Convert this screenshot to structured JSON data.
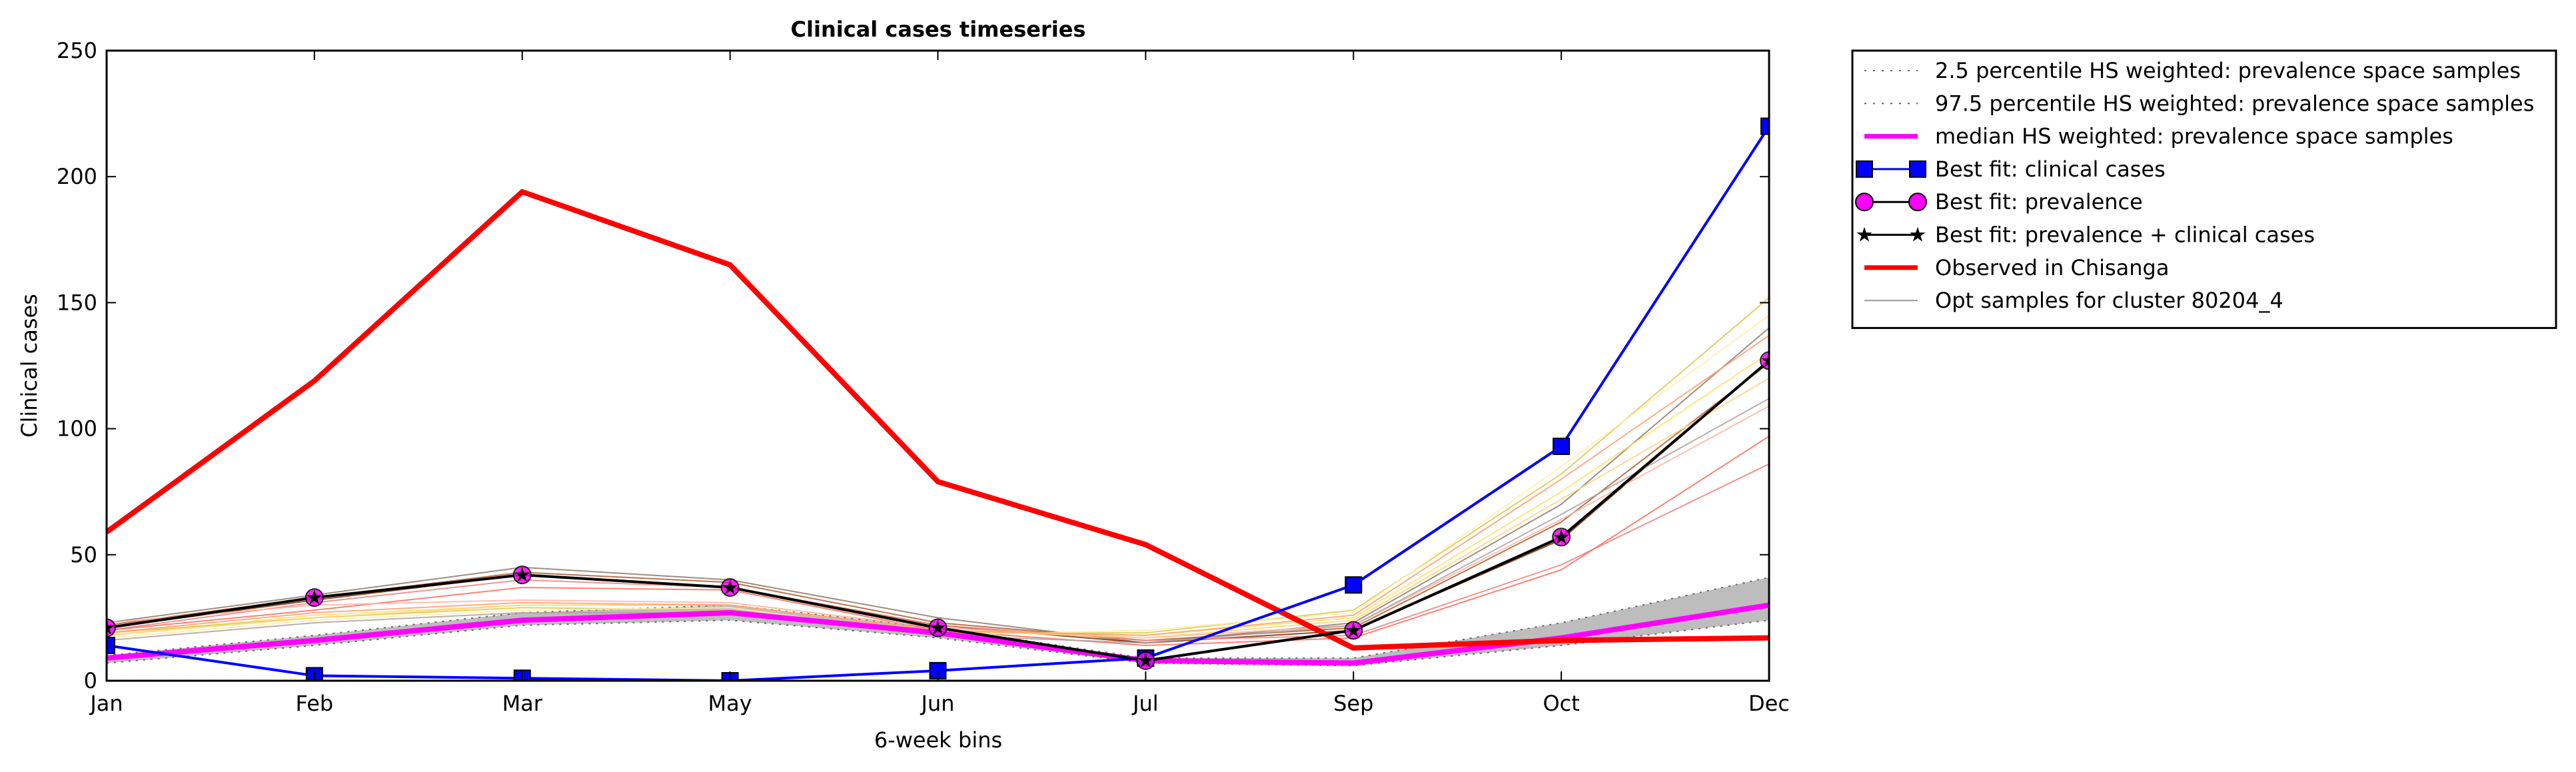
{
  "chart_data": {
    "type": "line",
    "title": "Clinical cases timeseries",
    "xlabel": "6-week bins",
    "ylabel": "Clinical cases",
    "categories": [
      "Jan",
      "Feb",
      "Mar",
      "May",
      "Jun",
      "Jul",
      "Sep",
      "Oct",
      "Dec"
    ],
    "ylim": [
      0,
      250
    ],
    "yticks": [
      0,
      50,
      100,
      150,
      200,
      250
    ],
    "grid": false,
    "legend_position": "outside right, top",
    "band": {
      "lower_name": "2.5 percentile HS weighted: prevalence space samples",
      "upper_name": "97.5 percentile HS weighted: prevalence space samples",
      "lower": [
        7,
        14,
        22,
        24,
        17,
        7,
        6,
        14,
        24
      ],
      "upper": [
        10,
        18,
        27,
        30,
        21,
        9,
        9,
        23,
        41
      ],
      "fill_color": "#bdbdbd",
      "line_color": "#666666"
    },
    "series": [
      {
        "name": "median HS weighted: prevalence space samples",
        "values": [
          9,
          16,
          24,
          27,
          19,
          8,
          7,
          17,
          30
        ],
        "color": "#ff00ff",
        "marker": "none"
      },
      {
        "name": "Best fit: clinical cases",
        "values": [
          14,
          2,
          1,
          0,
          4,
          9,
          38,
          93,
          220
        ],
        "color": "#0000ff",
        "marker": "square"
      },
      {
        "name": "Best fit: prevalence",
        "values": [
          21,
          33,
          42,
          37,
          21,
          8,
          20,
          57,
          127
        ],
        "color": "#ff00ff",
        "marker": "circle"
      },
      {
        "name": "Best fit: prevalence + clinical cases",
        "values": [
          21,
          33,
          42,
          37,
          21,
          8,
          20,
          57,
          127
        ],
        "color": "#000000",
        "marker": "star"
      },
      {
        "name": "Observed in Chisanga",
        "values": [
          59,
          119,
          194,
          165,
          79,
          54,
          13,
          16,
          17
        ],
        "color": "#ff0000",
        "marker": "none"
      },
      {
        "name": "Opt samples for cluster 80204_4",
        "values": [
          null,
          null,
          null,
          null,
          null,
          null,
          null,
          null,
          null
        ],
        "color": "#999999",
        "marker": "none"
      }
    ],
    "samples": [
      {
        "values": [
          23,
          34,
          45,
          40,
          25,
          15,
          23,
          70,
          140
        ],
        "color": "#8c7a6b"
      },
      {
        "values": [
          22,
          33,
          43,
          39,
          23,
          16,
          21,
          63,
          126
        ],
        "color": "#b05a2a"
      },
      {
        "values": [
          21,
          32,
          42,
          37,
          22,
          15,
          20,
          56,
          127
        ],
        "color": "#7a2a00"
      },
      {
        "values": [
          20,
          31,
          40,
          37,
          22,
          16,
          18,
          46,
          86
        ],
        "color": "#f08080"
      },
      {
        "values": [
          20,
          28,
          37,
          36,
          20,
          14,
          17,
          44,
          97
        ],
        "color": "#ff6a5a"
      },
      {
        "values": [
          23,
          30,
          32,
          31,
          21,
          17,
          22,
          64,
          109
        ],
        "color": "#ffb3a0"
      },
      {
        "values": [
          18,
          26,
          30,
          30,
          20,
          18,
          25,
          75,
          130
        ],
        "color": "#ffe066"
      },
      {
        "values": [
          19,
          25,
          29,
          28,
          19,
          19,
          28,
          82,
          152
        ],
        "color": "#d9c94a"
      },
      {
        "values": [
          17,
          24,
          28,
          29,
          18,
          20,
          27,
          85,
          145
        ],
        "color": "#fff0a8"
      },
      {
        "values": [
          18,
          25,
          30,
          30,
          20,
          17,
          24,
          72,
          120
        ],
        "color": "#ffd27f"
      },
      {
        "values": [
          16,
          23,
          27,
          27,
          18,
          15,
          22,
          66,
          112
        ],
        "color": "#b0a0a0"
      },
      {
        "values": [
          19,
          27,
          31,
          30,
          20,
          18,
          26,
          80,
          137
        ],
        "color": "#ff9e6b"
      }
    ]
  }
}
